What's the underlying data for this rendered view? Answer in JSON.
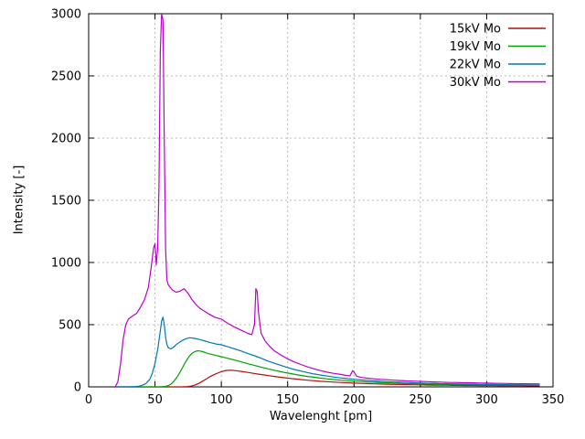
{
  "chart_data": {
    "type": "line",
    "title": "",
    "xlabel": "Wavelenght [pm]",
    "ylabel": "Intensity [-]",
    "xlim": [
      0,
      350
    ],
    "ylim": [
      0,
      3000
    ],
    "xticks": [
      0,
      50,
      100,
      150,
      200,
      250,
      300,
      350
    ],
    "yticks": [
      0,
      500,
      1000,
      1500,
      2000,
      2500,
      3000
    ],
    "grid": true,
    "grid_style": "dotted",
    "legend_position": "top-right",
    "background_color": "#ffffff",
    "axis_color": "#000000",
    "series": [
      {
        "name": "15kV Mo",
        "color": "#b01010",
        "points": [
          [
            20,
            0
          ],
          [
            70,
            0
          ],
          [
            74,
            2
          ],
          [
            77,
            6
          ],
          [
            80,
            14
          ],
          [
            83,
            28
          ],
          [
            86,
            46
          ],
          [
            89,
            66
          ],
          [
            92,
            85
          ],
          [
            95,
            101
          ],
          [
            98,
            114
          ],
          [
            100,
            122
          ],
          [
            102,
            128
          ],
          [
            104,
            132
          ],
          [
            106,
            134
          ],
          [
            108,
            133
          ],
          [
            110,
            131
          ],
          [
            113,
            127
          ],
          [
            116,
            122
          ],
          [
            120,
            116
          ],
          [
            124,
            109
          ],
          [
            128,
            102
          ],
          [
            132,
            96
          ],
          [
            136,
            90
          ],
          [
            140,
            84
          ],
          [
            144,
            78
          ],
          [
            148,
            73
          ],
          [
            152,
            68
          ],
          [
            156,
            63
          ],
          [
            160,
            59
          ],
          [
            165,
            54
          ],
          [
            170,
            49
          ],
          [
            175,
            45
          ],
          [
            180,
            42
          ],
          [
            185,
            38
          ],
          [
            190,
            35
          ],
          [
            195,
            33
          ],
          [
            200,
            30
          ],
          [
            205,
            28
          ],
          [
            210,
            26
          ],
          [
            215,
            24
          ],
          [
            220,
            23
          ],
          [
            225,
            21
          ],
          [
            230,
            20
          ],
          [
            235,
            19
          ],
          [
            240,
            18
          ],
          [
            245,
            17
          ],
          [
            250,
            16
          ],
          [
            255,
            15
          ],
          [
            260,
            14
          ],
          [
            265,
            13
          ],
          [
            270,
            13
          ],
          [
            275,
            12
          ],
          [
            280,
            12
          ],
          [
            285,
            11
          ],
          [
            290,
            11
          ],
          [
            295,
            10
          ],
          [
            300,
            10
          ],
          [
            305,
            10
          ],
          [
            310,
            9
          ],
          [
            315,
            9
          ],
          [
            320,
            9
          ],
          [
            325,
            9
          ],
          [
            330,
            8
          ],
          [
            335,
            8
          ],
          [
            340,
            8
          ]
        ]
      },
      {
        "name": "19kV Mo",
        "color": "#00a000",
        "points": [
          [
            20,
            0
          ],
          [
            50,
            0
          ],
          [
            55,
            1
          ],
          [
            58,
            4
          ],
          [
            60,
            10
          ],
          [
            62,
            22
          ],
          [
            64,
            42
          ],
          [
            66,
            70
          ],
          [
            68,
            102
          ],
          [
            70,
            140
          ],
          [
            72,
            180
          ],
          [
            74,
            218
          ],
          [
            76,
            248
          ],
          [
            78,
            270
          ],
          [
            80,
            283
          ],
          [
            82,
            290
          ],
          [
            84,
            288
          ],
          [
            86,
            283
          ],
          [
            88,
            276
          ],
          [
            90,
            268
          ],
          [
            93,
            260
          ],
          [
            96,
            252
          ],
          [
            100,
            243
          ],
          [
            104,
            232
          ],
          [
            108,
            221
          ],
          [
            112,
            210
          ],
          [
            116,
            198
          ],
          [
            120,
            186
          ],
          [
            124,
            175
          ],
          [
            128,
            164
          ],
          [
            132,
            153
          ],
          [
            136,
            143
          ],
          [
            140,
            133
          ],
          [
            144,
            124
          ],
          [
            148,
            115
          ],
          [
            152,
            107
          ],
          [
            156,
            99
          ],
          [
            160,
            92
          ],
          [
            165,
            84
          ],
          [
            170,
            77
          ],
          [
            175,
            70
          ],
          [
            180,
            64
          ],
          [
            185,
            59
          ],
          [
            190,
            54
          ],
          [
            195,
            50
          ],
          [
            200,
            46
          ],
          [
            205,
            43
          ],
          [
            210,
            40
          ],
          [
            215,
            37
          ],
          [
            220,
            34
          ],
          [
            225,
            32
          ],
          [
            230,
            30
          ],
          [
            235,
            28
          ],
          [
            240,
            26
          ],
          [
            245,
            25
          ],
          [
            250,
            23
          ],
          [
            255,
            22
          ],
          [
            260,
            21
          ],
          [
            265,
            20
          ],
          [
            270,
            19
          ],
          [
            275,
            18
          ],
          [
            280,
            17
          ],
          [
            285,
            16
          ],
          [
            290,
            16
          ],
          [
            295,
            15
          ],
          [
            300,
            15
          ],
          [
            305,
            14
          ],
          [
            310,
            14
          ],
          [
            315,
            13
          ],
          [
            320,
            13
          ],
          [
            325,
            13
          ],
          [
            330,
            12
          ],
          [
            335,
            12
          ],
          [
            340,
            12
          ]
        ]
      },
      {
        "name": "22kV Mo",
        "color": "#0078b0",
        "points": [
          [
            20,
            0
          ],
          [
            30,
            0
          ],
          [
            35,
            2
          ],
          [
            38,
            6
          ],
          [
            40,
            12
          ],
          [
            43,
            25
          ],
          [
            46,
            60
          ],
          [
            48,
            110
          ],
          [
            50,
            190
          ],
          [
            52,
            300
          ],
          [
            54,
            450
          ],
          [
            55,
            530
          ],
          [
            56,
            560
          ],
          [
            57,
            500
          ],
          [
            58,
            400
          ],
          [
            59,
            340
          ],
          [
            60,
            315
          ],
          [
            62,
            305
          ],
          [
            64,
            320
          ],
          [
            66,
            340
          ],
          [
            68,
            355
          ],
          [
            70,
            370
          ],
          [
            73,
            385
          ],
          [
            76,
            395
          ],
          [
            80,
            390
          ],
          [
            84,
            380
          ],
          [
            88,
            368
          ],
          [
            92,
            355
          ],
          [
            96,
            345
          ],
          [
            100,
            338
          ],
          [
            105,
            322
          ],
          [
            110,
            305
          ],
          [
            115,
            288
          ],
          [
            120,
            268
          ],
          [
            125,
            250
          ],
          [
            130,
            230
          ],
          [
            135,
            208
          ],
          [
            140,
            190
          ],
          [
            145,
            172
          ],
          [
            150,
            155
          ],
          [
            155,
            140
          ],
          [
            160,
            127
          ],
          [
            165,
            115
          ],
          [
            170,
            104
          ],
          [
            175,
            95
          ],
          [
            180,
            87
          ],
          [
            185,
            79
          ],
          [
            190,
            72
          ],
          [
            195,
            66
          ],
          [
            200,
            61
          ],
          [
            205,
            56
          ],
          [
            210,
            52
          ],
          [
            215,
            48
          ],
          [
            220,
            45
          ],
          [
            225,
            42
          ],
          [
            230,
            39
          ],
          [
            235,
            37
          ],
          [
            240,
            35
          ],
          [
            245,
            33
          ],
          [
            250,
            31
          ],
          [
            255,
            29
          ],
          [
            260,
            28
          ],
          [
            265,
            26
          ],
          [
            270,
            25
          ],
          [
            275,
            24
          ],
          [
            280,
            23
          ],
          [
            285,
            22
          ],
          [
            290,
            21
          ],
          [
            295,
            20
          ],
          [
            300,
            19
          ],
          [
            305,
            19
          ],
          [
            310,
            18
          ],
          [
            315,
            18
          ],
          [
            320,
            17
          ],
          [
            325,
            17
          ],
          [
            330,
            16
          ],
          [
            335,
            16
          ],
          [
            340,
            16
          ]
        ]
      },
      {
        "name": "30kV Mo",
        "color": "#bb00cc",
        "points": [
          [
            20,
            0
          ],
          [
            22,
            40
          ],
          [
            24,
            180
          ],
          [
            26,
            380
          ],
          [
            28,
            500
          ],
          [
            30,
            545
          ],
          [
            33,
            570
          ],
          [
            36,
            590
          ],
          [
            39,
            640
          ],
          [
            42,
            700
          ],
          [
            45,
            800
          ],
          [
            47,
            950
          ],
          [
            49,
            1120
          ],
          [
            50,
            1150
          ],
          [
            51,
            980
          ],
          [
            52,
            1120
          ],
          [
            53,
            1600
          ],
          [
            54,
            2700
          ],
          [
            55,
            3000
          ],
          [
            56,
            2950
          ],
          [
            57,
            2000
          ],
          [
            58,
            1100
          ],
          [
            59,
            860
          ],
          [
            60,
            820
          ],
          [
            63,
            780
          ],
          [
            66,
            760
          ],
          [
            69,
            770
          ],
          [
            72,
            790
          ],
          [
            75,
            750
          ],
          [
            78,
            700
          ],
          [
            81,
            660
          ],
          [
            84,
            630
          ],
          [
            87,
            610
          ],
          [
            90,
            590
          ],
          [
            95,
            560
          ],
          [
            100,
            545
          ],
          [
            105,
            510
          ],
          [
            110,
            480
          ],
          [
            115,
            455
          ],
          [
            120,
            430
          ],
          [
            123,
            420
          ],
          [
            125,
            500
          ],
          [
            126,
            790
          ],
          [
            127,
            770
          ],
          [
            128,
            600
          ],
          [
            130,
            430
          ],
          [
            133,
            370
          ],
          [
            136,
            330
          ],
          [
            140,
            290
          ],
          [
            145,
            255
          ],
          [
            150,
            225
          ],
          [
            155,
            200
          ],
          [
            160,
            180
          ],
          [
            165,
            160
          ],
          [
            170,
            145
          ],
          [
            175,
            130
          ],
          [
            180,
            118
          ],
          [
            185,
            108
          ],
          [
            190,
            100
          ],
          [
            194,
            92
          ],
          [
            197,
            88
          ],
          [
            199,
            130
          ],
          [
            200,
            120
          ],
          [
            202,
            85
          ],
          [
            206,
            75
          ],
          [
            210,
            70
          ],
          [
            215,
            65
          ],
          [
            220,
            60
          ],
          [
            225,
            57
          ],
          [
            230,
            54
          ],
          [
            235,
            51
          ],
          [
            240,
            48
          ],
          [
            245,
            46
          ],
          [
            250,
            44
          ],
          [
            255,
            42
          ],
          [
            260,
            40
          ],
          [
            265,
            38
          ],
          [
            270,
            36
          ],
          [
            275,
            35
          ],
          [
            280,
            34
          ],
          [
            285,
            33
          ],
          [
            290,
            32
          ],
          [
            295,
            31
          ],
          [
            300,
            30
          ],
          [
            305,
            29
          ],
          [
            310,
            28
          ],
          [
            315,
            27
          ],
          [
            320,
            26
          ],
          [
            325,
            25
          ],
          [
            330,
            25
          ],
          [
            335,
            24
          ],
          [
            340,
            24
          ]
        ]
      }
    ]
  }
}
